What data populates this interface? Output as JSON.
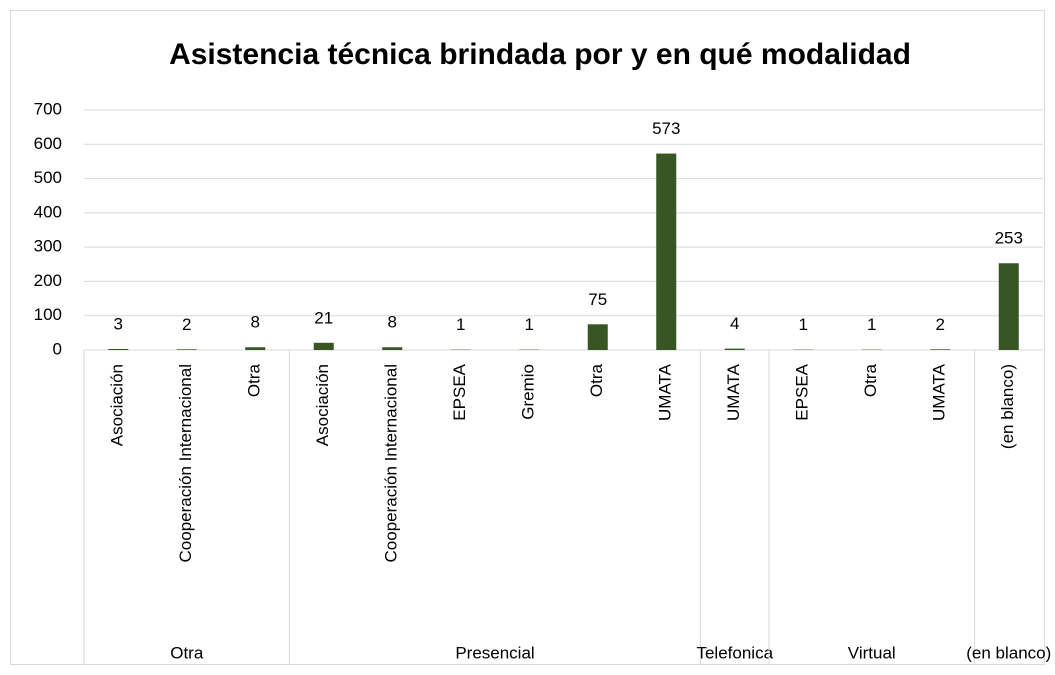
{
  "chart_data": {
    "type": "bar",
    "title": "Asistencia técnica brindada por y en qué modalidad",
    "groups": [
      {
        "name": "Otra",
        "categories": [
          "Asociación",
          "Cooperación Internacional",
          "Otra"
        ]
      },
      {
        "name": "Presencial",
        "categories": [
          "Asociación",
          "Cooperación Internacional",
          "EPSEA",
          "Gremio",
          "Otra",
          "UMATA"
        ]
      },
      {
        "name": "Telefonica",
        "categories": [
          "UMATA"
        ]
      },
      {
        "name": "Virtual",
        "categories": [
          "EPSEA",
          "Otra",
          "UMATA"
        ]
      },
      {
        "name": "(en blanco)",
        "categories": [
          "(en blanco)"
        ]
      }
    ],
    "values": [
      3,
      2,
      8,
      21,
      8,
      1,
      1,
      75,
      573,
      4,
      1,
      1,
      2,
      253
    ],
    "color": "#375623",
    "ylim": [
      0,
      700
    ],
    "yticks": [
      0,
      100,
      200,
      300,
      400,
      500,
      600,
      700
    ],
    "grid": true
  }
}
